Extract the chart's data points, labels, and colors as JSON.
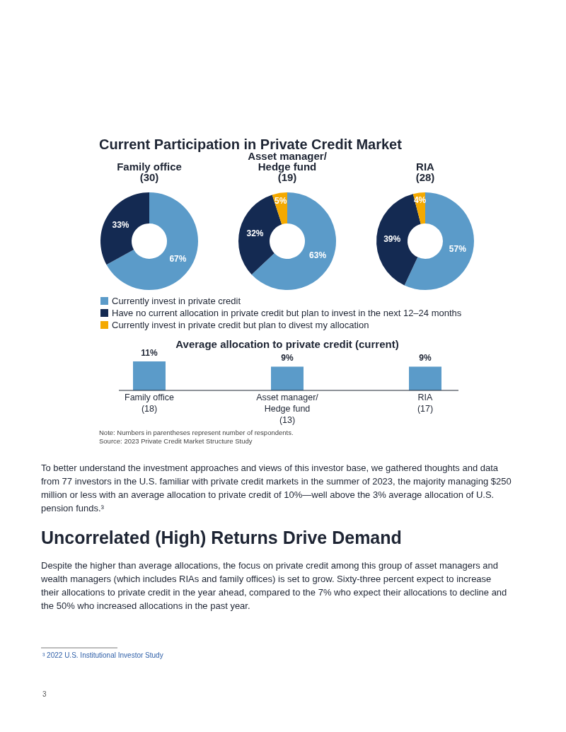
{
  "chart_data": [
    {
      "type": "donut",
      "title": "Current Participation in Private Credit Market",
      "subtitle": "Family office\n(30)",
      "categories": [
        null,
        null
      ],
      "values": [
        67,
        33
      ],
      "value_labels": [
        "67%",
        "33%"
      ],
      "colors": [
        "#5b9bc9",
        "#142a52"
      ]
    },
    {
      "type": "donut",
      "title": "Asset manager/\nHedge fund\n(19)",
      "categories": [
        "Currently invest in private credit",
        "Have no current allocation in private credit but plan to invest in the next 12–24 months",
        "Currently invest in private credit but plan to divest my allocation"
      ],
      "values": [
        63,
        32,
        5
      ],
      "value_labels": [
        "63%",
        "32%",
        "5%"
      ],
      "colors": [
        "#5b9bc9",
        "#142a52",
        "#f4a900"
      ],
      "legend": "bottom"
    },
    {
      "type": "donut",
      "title": "RIA\n(28)",
      "categories": [
        null,
        null,
        null
      ],
      "values": [
        57,
        39,
        4
      ],
      "value_labels": [
        "57%",
        "39%",
        "4%"
      ],
      "colors": [
        "#5b9bc9",
        "#142a52",
        "#f4a900"
      ]
    },
    {
      "type": "bar",
      "title": "Average allocation to private credit (current)",
      "categories": [
        "Family office\n(18)",
        "Asset manager/\nHedge fund\n(13)",
        "RIA\n(17)"
      ],
      "values": [
        11,
        9,
        9
      ],
      "value_labels": [
        "11%",
        "9%",
        "9%"
      ],
      "color": "#5b9bc9",
      "annotations": [
        "Note: Numbers in parentheses represent number of respondents.",
        "Source: 2023 Private Credit Market Structure Study"
      ]
    },
    {
      "type": "other",
      "annotations": [
        "To better understand the investment approaches and views of this investor base, we gathered thoughts and data\nfrom 77 investors in the U.S. familiar with private credit markets in the summer of 2023, the majority managing $250\nmillion or less with an average allocation to private credit of 10%—well above the 3% average allocation of U.S.\npension funds.³"
      ]
    },
    {
      "type": "other",
      "title": "Uncorrelated (High) Returns Drive Demand",
      "annotations": [
        "Despite the higher than average allocations, the focus on private credit among this group of asset managers and\nwealth managers (which includes RIAs and family offices) is set to grow. Sixty-three percent expect to increase\ntheir allocations to private credit in the year ahead, compared to the 7% who expect their allocations to decline and\nthe 50% who increased allocations in the past year.",
        "³ 2022 U.S. Institutional Investor Study",
        "3"
      ]
    }
  ]
}
